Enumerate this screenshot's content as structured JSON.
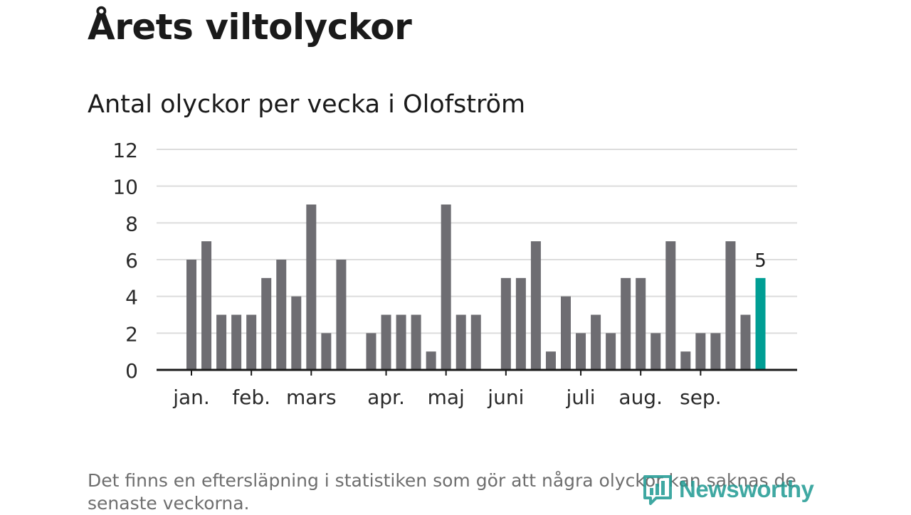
{
  "title": "Årets viltolyckor",
  "subtitle": "Antal olyckor per vecka i Olofström",
  "note": "Det finns en eftersläpning i statistiken som gör att några olyckor kan saknas de senaste veckorna.",
  "brand": {
    "name": "Newsworthy",
    "icon": "newsworthy-logo-icon"
  },
  "colors": {
    "bar": "#6e6d72",
    "highlight": "#009e94",
    "grid": "#dcdcdc",
    "axis": "#1a1a1a"
  },
  "chart_data": {
    "type": "bar",
    "title": "Antal olyckor per vecka i Olofström",
    "xlabel": "",
    "ylabel": "",
    "ylim": [
      0,
      12
    ],
    "yticks": [
      0,
      2,
      4,
      6,
      8,
      10,
      12
    ],
    "grid": true,
    "values": [
      6,
      7,
      3,
      3,
      3,
      5,
      6,
      4,
      9,
      2,
      6,
      null,
      2,
      3,
      3,
      3,
      1,
      9,
      3,
      3,
      null,
      5,
      5,
      7,
      1,
      4,
      2,
      3,
      2,
      5,
      5,
      2,
      7,
      1,
      2,
      2,
      7,
      3,
      5
    ],
    "highlight_index": 38,
    "highlight_label": "5",
    "month_labels": [
      {
        "label": "jan.",
        "week_index": 0
      },
      {
        "label": "feb.",
        "week_index": 4
      },
      {
        "label": "mars",
        "week_index": 8
      },
      {
        "label": "apr.",
        "week_index": 13
      },
      {
        "label": "maj",
        "week_index": 17
      },
      {
        "label": "juni",
        "week_index": 21
      },
      {
        "label": "juli",
        "week_index": 26
      },
      {
        "label": "aug.",
        "week_index": 30
      },
      {
        "label": "sep.",
        "week_index": 34
      }
    ]
  }
}
